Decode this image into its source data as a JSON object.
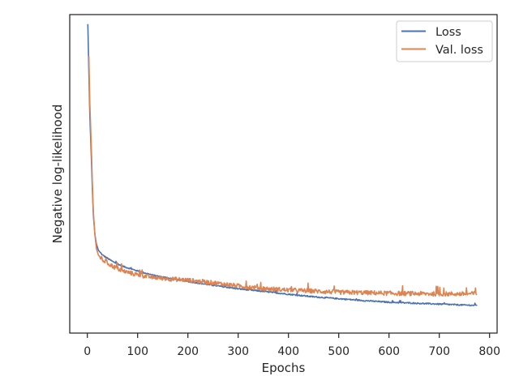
{
  "chart_data": {
    "type": "line",
    "xlabel": "Epochs",
    "ylabel": "Negative log-likelihood",
    "xlim": [
      -35,
      815
    ],
    "ylim": [
      0,
      1
    ],
    "xticks": [
      0,
      100,
      200,
      300,
      400,
      500,
      600,
      700,
      800
    ],
    "y_ticks_labeled": false,
    "grid": false,
    "legend_position": "top-right",
    "series": [
      {
        "name": "Loss",
        "color": "#4c72b0",
        "points": [
          [
            1,
            0.97
          ],
          [
            3,
            0.82
          ],
          [
            5,
            0.68
          ],
          [
            8,
            0.55
          ],
          [
            10,
            0.45
          ],
          [
            12,
            0.37
          ],
          [
            15,
            0.31
          ],
          [
            18,
            0.28
          ],
          [
            22,
            0.26
          ],
          [
            30,
            0.245
          ],
          [
            40,
            0.235
          ],
          [
            50,
            0.225
          ],
          [
            70,
            0.21
          ],
          [
            100,
            0.195
          ],
          [
            130,
            0.182
          ],
          [
            150,
            0.176
          ],
          [
            200,
            0.162
          ],
          [
            250,
            0.15
          ],
          [
            300,
            0.139
          ],
          [
            350,
            0.131
          ],
          [
            400,
            0.122
          ],
          [
            450,
            0.114
          ],
          [
            500,
            0.108
          ],
          [
            550,
            0.102
          ],
          [
            600,
            0.097
          ],
          [
            650,
            0.094
          ],
          [
            700,
            0.091
          ],
          [
            750,
            0.088
          ],
          [
            775,
            0.087
          ]
        ],
        "noise": 0.002
      },
      {
        "name": "Val. loss",
        "color": "#dd8452",
        "points": [
          [
            3,
            0.87
          ],
          [
            5,
            0.72
          ],
          [
            8,
            0.58
          ],
          [
            10,
            0.47
          ],
          [
            12,
            0.38
          ],
          [
            15,
            0.31
          ],
          [
            18,
            0.265
          ],
          [
            22,
            0.245
          ],
          [
            30,
            0.23
          ],
          [
            40,
            0.22
          ],
          [
            50,
            0.21
          ],
          [
            70,
            0.195
          ],
          [
            100,
            0.183
          ],
          [
            130,
            0.175
          ],
          [
            150,
            0.172
          ],
          [
            200,
            0.166
          ],
          [
            250,
            0.158
          ],
          [
            300,
            0.148
          ],
          [
            350,
            0.14
          ],
          [
            400,
            0.135
          ],
          [
            450,
            0.132
          ],
          [
            500,
            0.128
          ],
          [
            550,
            0.127
          ],
          [
            600,
            0.125
          ],
          [
            650,
            0.124
          ],
          [
            700,
            0.123
          ],
          [
            750,
            0.123
          ],
          [
            775,
            0.124
          ]
        ],
        "noise": 0.007
      }
    ]
  }
}
